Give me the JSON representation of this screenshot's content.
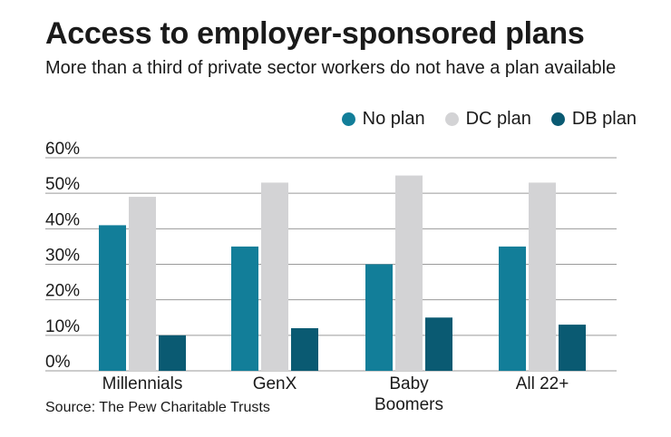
{
  "title": "Access to employer-sponsored plans",
  "subtitle": "More than a third of private sector workers do not have a plan available",
  "source": "Source: The Pew Charitable Trusts",
  "colors": {
    "no_plan": "#127e99",
    "dc_plan": "#d3d3d5",
    "db_plan": "#0a5a72",
    "grid": "#9a9a9a"
  },
  "chart_data": {
    "type": "bar",
    "title": "Access to employer-sponsored plans",
    "xlabel": "",
    "ylabel": "",
    "ylim": [
      0,
      60
    ],
    "yticks": [
      "0%",
      "10%",
      "20%",
      "30%",
      "40%",
      "50%",
      "60%"
    ],
    "yticks_values": [
      0,
      10,
      20,
      30,
      40,
      50,
      60
    ],
    "grid": true,
    "legend_position": "top-right",
    "categories": [
      "Millennials",
      "GenX",
      "Baby Boomers",
      "All 22+"
    ],
    "category_lines": [
      [
        "Millennials"
      ],
      [
        "GenX"
      ],
      [
        "Baby",
        "Boomers"
      ],
      [
        "All 22+"
      ]
    ],
    "series": [
      {
        "name": "No plan",
        "color_key": "no_plan",
        "values": [
          41,
          35,
          30,
          35
        ]
      },
      {
        "name": "DC plan",
        "color_key": "dc_plan",
        "values": [
          49,
          53,
          55,
          53
        ]
      },
      {
        "name": "DB plan",
        "color_key": "db_plan",
        "values": [
          10,
          12,
          15,
          13
        ]
      }
    ]
  }
}
